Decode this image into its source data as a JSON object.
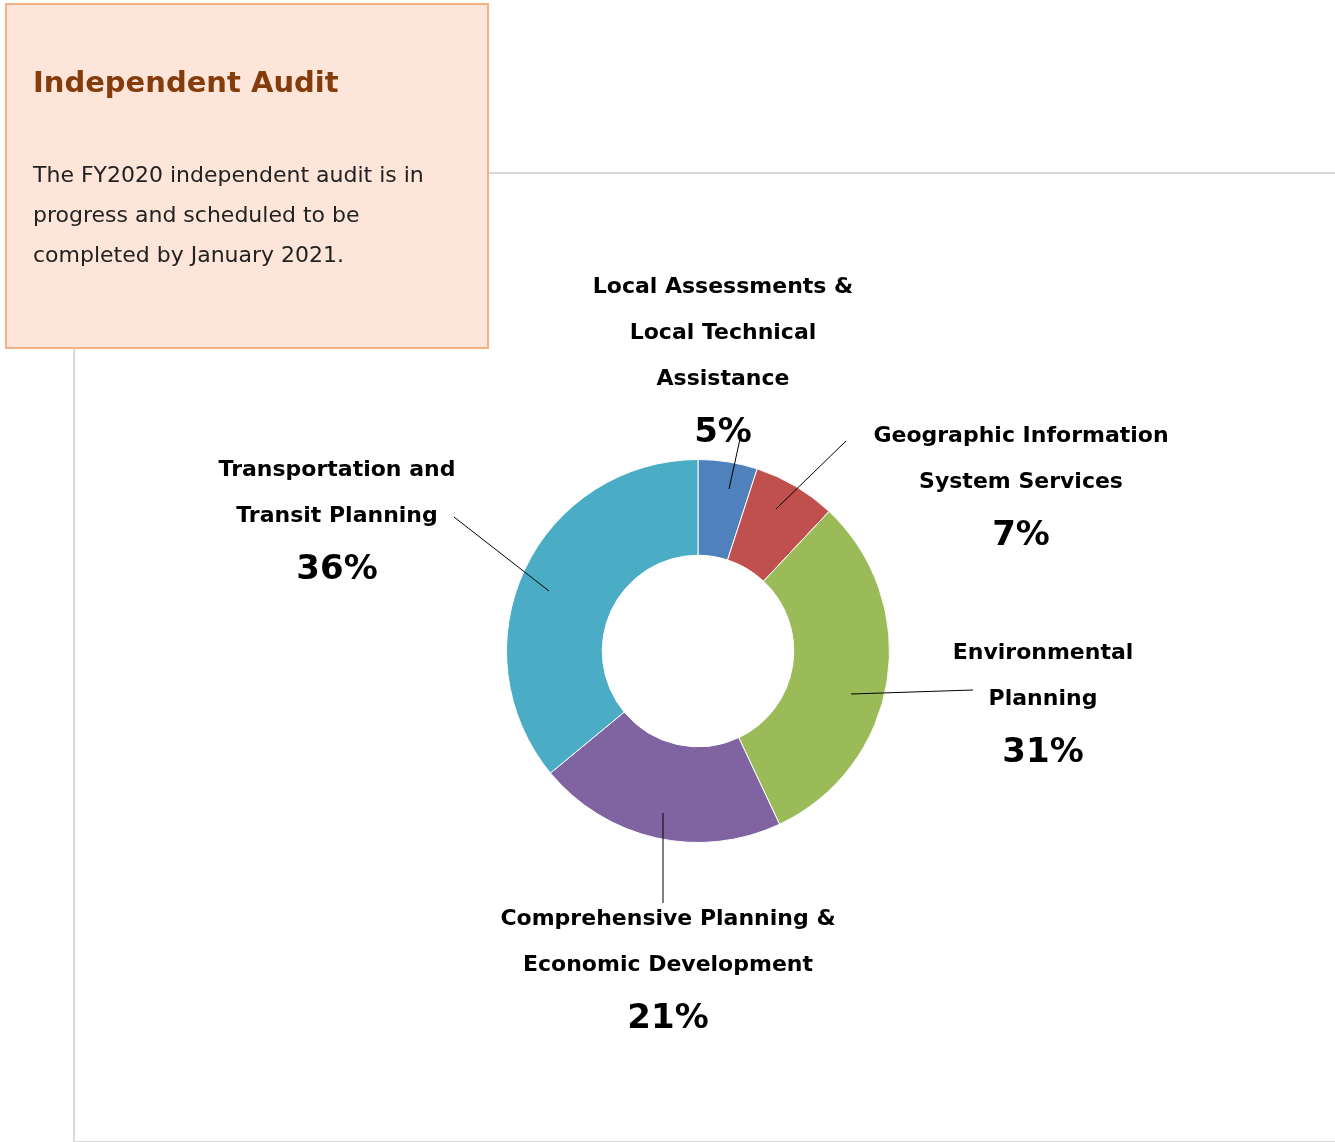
{
  "chart_data": [
    {
      "type": "other",
      "title": "Independent Audit",
      "annotations": [
        "The FY2020 independent audit is in progress and scheduled to be completed by January 2021."
      ]
    },
    {
      "type": "donut",
      "categories": [
        "Local Assessments & Local Technical Assistance",
        "Geographic Information System Services",
        "Environmental Planning",
        "Comprehensive Planning & Economic Development",
        "Transportation and Transit Planning"
      ],
      "values": [
        5,
        7,
        31,
        21,
        36
      ],
      "colors": [
        "#4f81bd",
        "#c0504d",
        "#9bbb59",
        "#8064a2",
        "#4bacc6"
      ],
      "value_labels": [
        "5%",
        "7%",
        "31%",
        "21%",
        "36%"
      ],
      "legend": false
    }
  ]
}
